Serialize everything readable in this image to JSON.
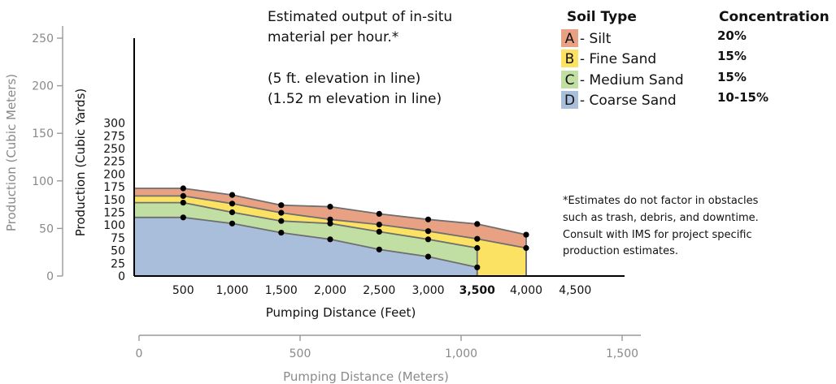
{
  "chart_data": {
    "type": "area",
    "subtitle_lines": [
      "Estimated output of in-situ",
      "material per hour.*",
      "",
      "(5 ft. elevation in line)",
      "(1.52 m elevation in line)"
    ],
    "xlabel": "Pumping Distance (Feet)",
    "ylabel": "Production (Cubic Yards)",
    "secondary_xlabel": "Pumping Distance (Meters)",
    "secondary_ylabel": "Production (Cubic Meters)",
    "x_ticks": [
      "500",
      "1,000",
      "1,500",
      "2,000",
      "2,500",
      "3,000",
      "3,500",
      "4,000",
      "4,500"
    ],
    "y_ticks": [
      "0",
      "25",
      "50",
      "75",
      "100",
      "125",
      "150",
      "175",
      "200",
      "225",
      "250",
      "275",
      "300"
    ],
    "secondary_x_ticks": [
      "0",
      "500",
      "1,000",
      "1,500"
    ],
    "secondary_y_ticks": [
      "0",
      "50",
      "100",
      "150",
      "200",
      "250"
    ],
    "ylim": [
      0,
      300
    ],
    "xlim": [
      0,
      5000
    ],
    "x": [
      500,
      1000,
      1500,
      2000,
      2500,
      3000,
      3500,
      4000
    ],
    "series": [
      {
        "key": "D",
        "name": "Coarse Sand",
        "color": "#a9bedb",
        "values": [
          115,
          103,
          85,
          72,
          52,
          38,
          17,
          null
        ]
      },
      {
        "key": "C",
        "name": "Medium Sand",
        "color": "#c1dfa2",
        "values": [
          144,
          125,
          108,
          103,
          87,
          72,
          55,
          null
        ]
      },
      {
        "key": "B",
        "name": "Fine Sand",
        "color": "#fce262",
        "values": [
          157,
          142,
          124,
          111,
          101,
          88,
          73,
          55
        ]
      },
      {
        "key": "A",
        "name": "Silt",
        "color": "#e8a183",
        "values": [
          172,
          159,
          139,
          136,
          122,
          111,
          102,
          81
        ]
      }
    ],
    "legend": {
      "heading_left": "Soil Type",
      "heading_right": "Concentration",
      "items": [
        {
          "letter": "A",
          "label": "- Silt",
          "conc": "20%",
          "color": "#e8a183"
        },
        {
          "letter": "B",
          "label": "- Fine Sand",
          "conc": "15%",
          "color": "#fce262"
        },
        {
          "letter": "C",
          "label": "- Medium Sand",
          "conc": "15%",
          "color": "#c1dfa2"
        },
        {
          "letter": "D",
          "label": "- Coarse Sand",
          "conc": "10-15%",
          "color": "#a9bedb"
        }
      ]
    },
    "note_lines": [
      "*Estimates do not factor in obstacles",
      "such as trash, debris, and downtime.",
      "Consult with IMS for project specific",
      "production estimates."
    ]
  }
}
